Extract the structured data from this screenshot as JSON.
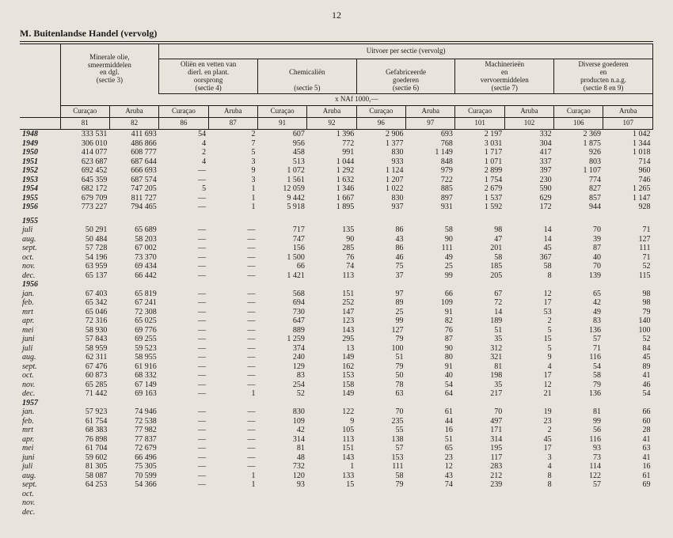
{
  "page_number": "12",
  "section_title": "M.   Buitenlandse Handel (vervolg)",
  "super_header": "Uitvoer per sectie (vervolg)",
  "unit_label": "x NAf 1000,—",
  "groups": [
    {
      "title_lines": [
        "Minerale olie,",
        "smeermiddelen",
        "en dgl.",
        "(sectie 3)"
      ],
      "curacao": "Curaçao",
      "aruba": "Aruba",
      "c_code": "81",
      "a_code": "82"
    },
    {
      "title_lines": [
        "Oliën en vetten van",
        "dierl. en plant.",
        "oorsprong",
        "(sectie 4)"
      ],
      "curacao": "Curaçao",
      "aruba": "Aruba",
      "c_code": "86",
      "a_code": "87"
    },
    {
      "title_lines": [
        "",
        "Chemicaliën",
        "",
        "(sectie 5)"
      ],
      "curacao": "Curaçao",
      "aruba": "Aruba",
      "c_code": "91",
      "a_code": "92"
    },
    {
      "title_lines": [
        "",
        "Gefabriceerde",
        "goederen",
        "(sectie 6)"
      ],
      "curacao": "Curaçao",
      "aruba": "Aruba",
      "c_code": "96",
      "a_code": "97"
    },
    {
      "title_lines": [
        "Machinerieën",
        "en",
        "vervoermiddelen",
        "(sectie 7)"
      ],
      "curacao": "Curaçao",
      "aruba": "Aruba",
      "c_code": "101",
      "a_code": "102"
    },
    {
      "title_lines": [
        "Diverse goederen",
        "en",
        "producten n.a.g.",
        "(sectie 8 en 9)"
      ],
      "curacao": "Curaçao",
      "aruba": "Aruba",
      "c_code": "106",
      "a_code": "107"
    }
  ],
  "rows": [
    {
      "label": "1948",
      "bold": true,
      "v": [
        "333 531",
        "411 693",
        "54",
        "2",
        "607",
        "1 396",
        "2 906",
        "693",
        "2 197",
        "332",
        "2 369",
        "1 042"
      ]
    },
    {
      "label": "1949",
      "bold": true,
      "v": [
        "306 010",
        "486 866",
        "4",
        "7",
        "956",
        "772",
        "1 377",
        "768",
        "3 031",
        "304",
        "1 875",
        "1 344"
      ]
    },
    {
      "label": "1950",
      "bold": true,
      "v": [
        "414 077",
        "608 777",
        "2",
        "5",
        "458",
        "991",
        "830",
        "1 149",
        "1 717",
        "417",
        "926",
        "1 018"
      ]
    },
    {
      "label": "1951",
      "bold": true,
      "v": [
        "623 687",
        "687 644",
        "4",
        "3",
        "513",
        "1 044",
        "933",
        "848",
        "1 071",
        "337",
        "803",
        "714"
      ]
    },
    {
      "label": "1952",
      "bold": true,
      "v": [
        "692 452",
        "666 693",
        "—",
        "9",
        "1 072",
        "1 292",
        "1 124",
        "979",
        "2 899",
        "397",
        "1 107",
        "960"
      ]
    },
    {
      "label": "1953",
      "bold": true,
      "v": [
        "645 359",
        "687 574",
        "—",
        "3",
        "1 561",
        "1 632",
        "1 207",
        "722",
        "1 754",
        "230",
        "774",
        "746"
      ]
    },
    {
      "label": "1954",
      "bold": true,
      "v": [
        "682 172",
        "747 205",
        "5",
        "1",
        "12 059",
        "1 346",
        "1 022",
        "885",
        "2 679",
        "590",
        "827",
        "1 265"
      ]
    },
    {
      "label": "1955",
      "bold": true,
      "v": [
        "679 709",
        "811 727",
        "—",
        "1",
        "9 442",
        "1 667",
        "830",
        "897",
        "1 537",
        "629",
        "857",
        "1 147"
      ]
    },
    {
      "label": "1956",
      "bold": true,
      "v": [
        "773 227",
        "794 465",
        "—",
        "1",
        "5 918",
        "1 895",
        "937",
        "931",
        "1 592",
        "172",
        "944",
        "928"
      ]
    },
    {
      "gap": true
    },
    {
      "label": "1955",
      "bold": true,
      "v": [
        "",
        "",
        "",
        "",
        "",
        "",
        "",
        "",
        "",
        "",
        "",
        ""
      ]
    },
    {
      "label": "juli",
      "v": [
        "50 291",
        "65 689",
        "—",
        "—",
        "717",
        "135",
        "86",
        "58",
        "98",
        "14",
        "70",
        "71"
      ]
    },
    {
      "label": "aug.",
      "v": [
        "50 484",
        "58 203",
        "—",
        "—",
        "747",
        "90",
        "43",
        "90",
        "47",
        "14",
        "39",
        "127"
      ]
    },
    {
      "label": "sept.",
      "v": [
        "57 728",
        "67 002",
        "—",
        "—",
        "156",
        "285",
        "86",
        "111",
        "201",
        "45",
        "87",
        "111"
      ]
    },
    {
      "label": "oct.",
      "v": [
        "54 196",
        "73 370",
        "—",
        "—",
        "1 500",
        "76",
        "46",
        "49",
        "58",
        "367",
        "40",
        "71"
      ]
    },
    {
      "label": "nov.",
      "v": [
        "63 959",
        "69 434",
        "—",
        "—",
        "66",
        "74",
        "75",
        "25",
        "185",
        "58",
        "70",
        "52"
      ]
    },
    {
      "label": "dec.",
      "v": [
        "65 137",
        "66 442",
        "—",
        "—",
        "1 421",
        "113",
        "37",
        "99",
        "205",
        "8",
        "139",
        "115"
      ]
    },
    {
      "label": "1956",
      "bold": true,
      "v": [
        "",
        "",
        "",
        "",
        "",
        "",
        "",
        "",
        "",
        "",
        "",
        ""
      ]
    },
    {
      "label": "jan.",
      "v": [
        "67 403",
        "65 819",
        "—",
        "—",
        "568",
        "151",
        "97",
        "66",
        "67",
        "12",
        "65",
        "98"
      ]
    },
    {
      "label": "feb.",
      "v": [
        "65 342",
        "67 241",
        "—",
        "—",
        "694",
        "252",
        "89",
        "109",
        "72",
        "17",
        "42",
        "98"
      ]
    },
    {
      "label": "mrt",
      "v": [
        "65 046",
        "72 308",
        "—",
        "—",
        "730",
        "147",
        "25",
        "91",
        "14",
        "53",
        "49",
        "79"
      ]
    },
    {
      "label": "apr.",
      "v": [
        "72 316",
        "65 025",
        "—",
        "—",
        "647",
        "123",
        "99",
        "82",
        "189",
        "2",
        "83",
        "140"
      ]
    },
    {
      "label": "mei",
      "v": [
        "58 930",
        "69 776",
        "—",
        "—",
        "889",
        "143",
        "127",
        "76",
        "51",
        "5",
        "136",
        "100"
      ]
    },
    {
      "label": "juni",
      "v": [
        "57 843",
        "69 255",
        "—",
        "—",
        "1 259",
        "295",
        "79",
        "87",
        "35",
        "15",
        "57",
        "52"
      ]
    },
    {
      "label": "juli",
      "v": [
        "58 959",
        "59 523",
        "—",
        "—",
        "374",
        "13",
        "100",
        "90",
        "312",
        "5",
        "71",
        "84"
      ]
    },
    {
      "label": "aug.",
      "v": [
        "62 311",
        "58 955",
        "—",
        "—",
        "240",
        "149",
        "51",
        "80",
        "321",
        "9",
        "116",
        "45"
      ]
    },
    {
      "label": "sept.",
      "v": [
        "67 476",
        "61 916",
        "—",
        "—",
        "129",
        "162",
        "79",
        "91",
        "81",
        "4",
        "54",
        "89"
      ]
    },
    {
      "label": "oct.",
      "v": [
        "60 873",
        "68 332",
        "—",
        "—",
        "83",
        "153",
        "50",
        "40",
        "198",
        "17",
        "58",
        "41"
      ]
    },
    {
      "label": "nov.",
      "v": [
        "65 285",
        "67 149",
        "—",
        "—",
        "254",
        "158",
        "78",
        "54",
        "35",
        "12",
        "79",
        "46"
      ]
    },
    {
      "label": "dec.",
      "v": [
        "71 442",
        "69 163",
        "—",
        "1",
        "52",
        "149",
        "63",
        "64",
        "217",
        "21",
        "136",
        "54"
      ]
    },
    {
      "label": "1957",
      "bold": true,
      "v": [
        "",
        "",
        "",
        "",
        "",
        "",
        "",
        "",
        "",
        "",
        "",
        ""
      ]
    },
    {
      "label": "jan.",
      "v": [
        "57 923",
        "74 946",
        "—",
        "—",
        "830",
        "122",
        "70",
        "61",
        "70",
        "19",
        "81",
        "66"
      ]
    },
    {
      "label": "feb.",
      "v": [
        "61 754",
        "72 538",
        "—",
        "—",
        "109",
        "9",
        "235",
        "44",
        "497",
        "23",
        "99",
        "60"
      ]
    },
    {
      "label": "mrt",
      "v": [
        "68 383",
        "77 982",
        "—",
        "—",
        "42",
        "105",
        "55",
        "16",
        "171",
        "2",
        "56",
        "28"
      ]
    },
    {
      "label": "apr.",
      "v": [
        "76 898",
        "77 837",
        "—",
        "—",
        "314",
        "113",
        "138",
        "51",
        "314",
        "45",
        "116",
        "41"
      ]
    },
    {
      "label": "mei",
      "v": [
        "61 704",
        "72 679",
        "—",
        "—",
        "81",
        "151",
        "57",
        "65",
        "195",
        "17",
        "93",
        "63"
      ]
    },
    {
      "label": "juni",
      "v": [
        "59 602",
        "66 496",
        "—",
        "—",
        "48",
        "143",
        "153",
        "23",
        "117",
        "3",
        "73",
        "41"
      ]
    },
    {
      "label": "juli",
      "v": [
        "81 305",
        "75 305",
        "—",
        "—",
        "732",
        "1",
        "111",
        "12",
        "283",
        "4",
        "114",
        "16"
      ]
    },
    {
      "label": "aug.",
      "v": [
        "58 087",
        "70 599",
        "—",
        "1",
        "120",
        "133",
        "58",
        "43",
        "212",
        "8",
        "122",
        "61"
      ]
    },
    {
      "label": "sept.",
      "v": [
        "64 253",
        "54 366",
        "—",
        "1",
        "93",
        "15",
        "79",
        "74",
        "239",
        "8",
        "57",
        "69"
      ]
    },
    {
      "label": "oct.",
      "v": [
        "",
        "",
        "",
        "",
        "",
        "",
        "",
        "",
        "",
        "",
        "",
        ""
      ]
    },
    {
      "label": "nov.",
      "v": [
        "",
        "",
        "",
        "",
        "",
        "",
        "",
        "",
        "",
        "",
        "",
        ""
      ]
    },
    {
      "label": "dec.",
      "v": [
        "",
        "",
        "",
        "",
        "",
        "",
        "",
        "",
        "",
        "",
        "",
        ""
      ]
    }
  ]
}
